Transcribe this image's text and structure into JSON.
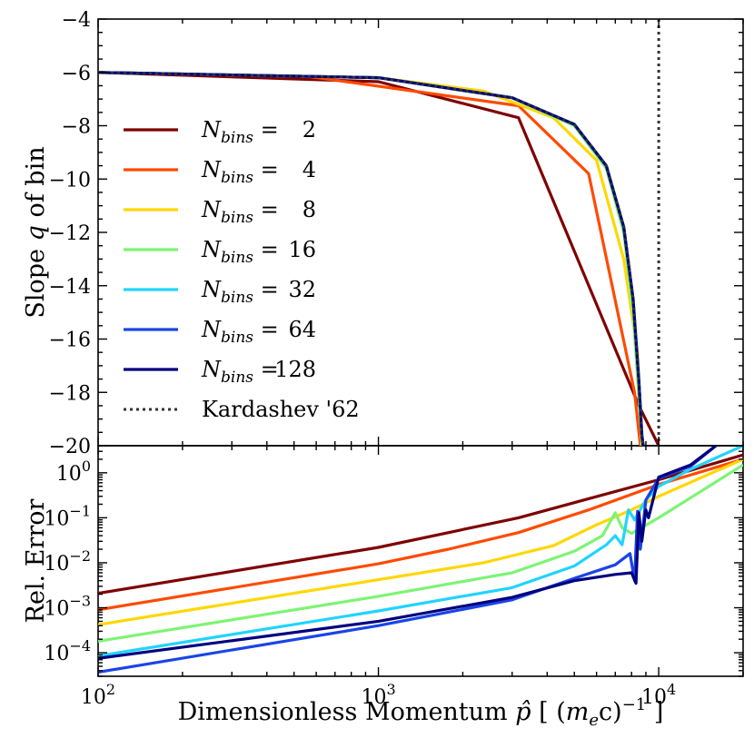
{
  "chart_data": [
    {
      "panel": "top",
      "type": "line",
      "xlabel": "Dimensionless Momentum  p̂ [ (m_e c)^{-1} ]",
      "ylabel": "Slope  q of bin",
      "xscale": "log",
      "xlim": [
        100,
        20000
      ],
      "ylim": [
        -20,
        -4
      ],
      "yticks": [
        -20,
        -18,
        -16,
        -14,
        -12,
        -10,
        -8,
        -6,
        -4
      ],
      "ytick_labels": [
        "−20",
        "−18",
        "−16",
        "−14",
        "−12",
        "−10",
        "−8",
        "−6",
        "−4"
      ],
      "legend_position": "center-left",
      "series": [
        {
          "name": "N_bins = 2",
          "legend_n": "2",
          "color": "#7f0000",
          "x": [
            100,
            1000,
            3162,
            8500,
            10000
          ],
          "y": [
            -6.0,
            -6.35,
            -7.7,
            -18.5,
            -20
          ]
        },
        {
          "name": "N_bins = 4",
          "legend_n": "4",
          "color": "#ff4a00",
          "x": [
            100,
            562,
            3162,
            5623,
            8200,
            8600
          ],
          "y": [
            -6.0,
            -6.15,
            -7.25,
            -9.8,
            -18.0,
            -20
          ]
        },
        {
          "name": "N_bins = 8",
          "legend_n": "8",
          "color": "#ffd700",
          "x": [
            100,
            1000,
            2371,
            4217,
            6000,
            7500,
            8400,
            8700
          ],
          "y": [
            -6.0,
            -6.2,
            -6.7,
            -7.7,
            -9.3,
            -13.0,
            -16.5,
            -20
          ]
        },
        {
          "name": "N_bins = 16",
          "legend_n": "16",
          "color": "#7df474",
          "x": [
            100,
            1000,
            3000,
            5000,
            6500,
            7500,
            8100,
            8600,
            8750
          ],
          "y": [
            -6.0,
            -6.2,
            -6.95,
            -8.0,
            -9.6,
            -12.0,
            -15.0,
            -19.0,
            -20
          ]
        },
        {
          "name": "N_bins = 32",
          "legend_n": "32",
          "color": "#20d4ff",
          "x": [
            100,
            1000,
            3000,
            5000,
            6500,
            7500,
            8100,
            8500,
            8700,
            8800
          ],
          "y": [
            -6.0,
            -6.2,
            -6.95,
            -7.95,
            -9.5,
            -11.8,
            -14.5,
            -17.5,
            -19.5,
            -20
          ]
        },
        {
          "name": "N_bins = 64",
          "legend_n": "64",
          "color": "#1a44e6",
          "x": [
            100,
            1000,
            3000,
            5000,
            6500,
            7500,
            8100,
            8500,
            8700,
            8800
          ],
          "y": [
            -6.0,
            -6.2,
            -6.95,
            -7.95,
            -9.5,
            -11.8,
            -14.5,
            -17.6,
            -19.6,
            -20
          ]
        },
        {
          "name": "N_bins = 128",
          "legend_n": "128",
          "color": "#000080",
          "x": [
            100,
            1000,
            3000,
            5000,
            6500,
            7500,
            8100,
            8500,
            8700,
            8800
          ],
          "y": [
            -6.0,
            -6.2,
            -6.95,
            -7.95,
            -9.5,
            -11.8,
            -14.5,
            -17.6,
            -19.6,
            -20
          ]
        },
        {
          "name": "Kardashev '62",
          "color": "#333333",
          "dashed": true,
          "x": [
            100,
            1000,
            3000,
            5000,
            6500,
            7500,
            8100,
            8500,
            8700,
            8800
          ],
          "y": [
            -6.0,
            -6.2,
            -6.95,
            -7.95,
            -9.5,
            -11.8,
            -14.5,
            -17.6,
            -19.6,
            -20
          ]
        }
      ],
      "vline": {
        "x": 10000,
        "color": "#333333",
        "dashed": true
      },
      "legend": [
        {
          "label_prefix": "N",
          "label_sub": "bins",
          "value": "2"
        },
        {
          "label_prefix": "N",
          "label_sub": "bins",
          "value": "4"
        },
        {
          "label_prefix": "N",
          "label_sub": "bins",
          "value": "8"
        },
        {
          "label_prefix": "N",
          "label_sub": "bins",
          "value": "16"
        },
        {
          "label_prefix": "N",
          "label_sub": "bins",
          "value": "32"
        },
        {
          "label_prefix": "N",
          "label_sub": "bins",
          "value": "64"
        },
        {
          "label_prefix": "N",
          "label_sub": "bins",
          "value": "128"
        },
        {
          "text": "Kardashev '62"
        }
      ]
    },
    {
      "panel": "bottom",
      "type": "line",
      "ylabel": "Rel. Error",
      "xscale": "log",
      "yscale": "log",
      "xlim": [
        100,
        20000
      ],
      "ylim": [
        3e-05,
        4
      ],
      "xticks": [
        100,
        1000,
        10000
      ],
      "xtick_labels": [
        "10^2",
        "10^3",
        "10^4"
      ],
      "yticks": [
        0.0001,
        0.001,
        0.01,
        0.1,
        1
      ],
      "ytick_labels": [
        "10^-4",
        "10^-3",
        "10^-2",
        "10^-1",
        "10^0"
      ],
      "series": [
        {
          "name": "N_bins = 2",
          "color": "#7f0000",
          "x": [
            100,
            1000,
            3162,
            10000,
            20000
          ],
          "y": [
            0.0021,
            0.022,
            0.1,
            0.7,
            2.5
          ]
        },
        {
          "name": "N_bins = 4",
          "color": "#ff4a00",
          "x": [
            100,
            1000,
            1778,
            3162,
            5623,
            10000,
            20000
          ],
          "y": [
            0.0009,
            0.0095,
            0.02,
            0.047,
            0.15,
            0.55,
            2.0
          ]
        },
        {
          "name": "N_bins = 8",
          "color": "#ffd700",
          "x": [
            100,
            1000,
            2371,
            4217,
            6000,
            8000,
            10000,
            20000
          ],
          "y": [
            0.00042,
            0.0042,
            0.01,
            0.024,
            0.07,
            0.15,
            0.3,
            2.0
          ]
        },
        {
          "name": "N_bins = 16",
          "color": "#7df474",
          "x": [
            100,
            1000,
            3000,
            5000,
            6300,
            7000,
            7400,
            8000,
            10000,
            20000
          ],
          "y": [
            0.00018,
            0.0018,
            0.006,
            0.018,
            0.04,
            0.13,
            0.06,
            0.045,
            0.1,
            1.5
          ]
        },
        {
          "name": "N_bins = 32",
          "color": "#20d4ff",
          "x": [
            100,
            1000,
            3000,
            5000,
            6500,
            7000,
            7400,
            7800,
            8200,
            9000,
            10000,
            13000,
            20000
          ],
          "y": [
            8.5e-05,
            0.00085,
            0.0028,
            0.0085,
            0.025,
            0.04,
            0.025,
            0.15,
            0.09,
            0.25,
            0.5,
            1.2,
            4
          ]
        },
        {
          "name": "N_bins = 64",
          "color": "#1a44e6",
          "x": [
            100,
            1000,
            3000,
            5000,
            7000,
            7900,
            8200,
            8400,
            8600,
            9000,
            10000,
            13000,
            16000
          ],
          "y": [
            3.7e-05,
            0.0004,
            0.0015,
            0.0045,
            0.009,
            0.016,
            0.004,
            0.14,
            0.02,
            0.25,
            0.75,
            1.4,
            4
          ]
        },
        {
          "name": "N_bins = 128",
          "color": "#000080",
          "x": [
            100,
            1000,
            3000,
            5000,
            7000,
            8000,
            8300,
            8500,
            8700,
            9000,
            9200,
            10000,
            13000,
            16000
          ],
          "y": [
            7.5e-05,
            0.0005,
            0.0017,
            0.004,
            0.0055,
            0.006,
            0.0035,
            0.13,
            0.03,
            0.15,
            0.1,
            0.8,
            1.5,
            4
          ]
        }
      ]
    }
  ]
}
